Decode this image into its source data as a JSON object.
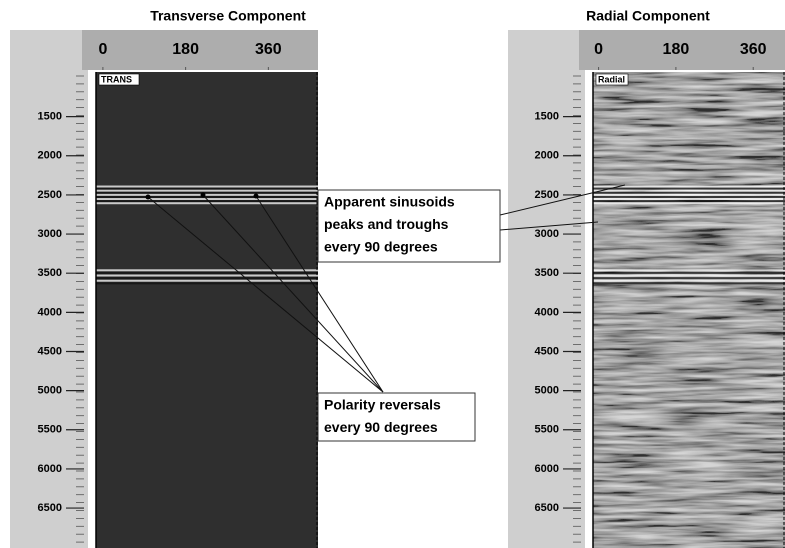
{
  "panels": [
    {
      "title": "Transverse Component",
      "section_label": "TRANS",
      "top_ticks": [
        0,
        180,
        360
      ],
      "top_lim": [
        -15,
        468
      ],
      "depth_ticks": [
        1500,
        2000,
        2500,
        3000,
        3500,
        4000,
        4500,
        5000,
        5500,
        6000,
        6500
      ],
      "depth_lim": [
        930,
        7010
      ]
    },
    {
      "title": "Radial Component",
      "section_label": "Radial",
      "top_ticks": [
        0,
        180,
        360
      ],
      "top_lim": [
        -13,
        434
      ],
      "depth_ticks": [
        1500,
        2000,
        2500,
        3000,
        3500,
        4000,
        4500,
        5000,
        5500,
        6000,
        6500
      ],
      "depth_lim": [
        930,
        7010
      ]
    }
  ],
  "annotations": [
    {
      "lines": [
        "Apparent sinusoids",
        "peaks and troughs",
        "every 90 degrees"
      ]
    },
    {
      "lines": [
        "Polarity reversals",
        "every 90 degrees"
      ]
    }
  ]
}
